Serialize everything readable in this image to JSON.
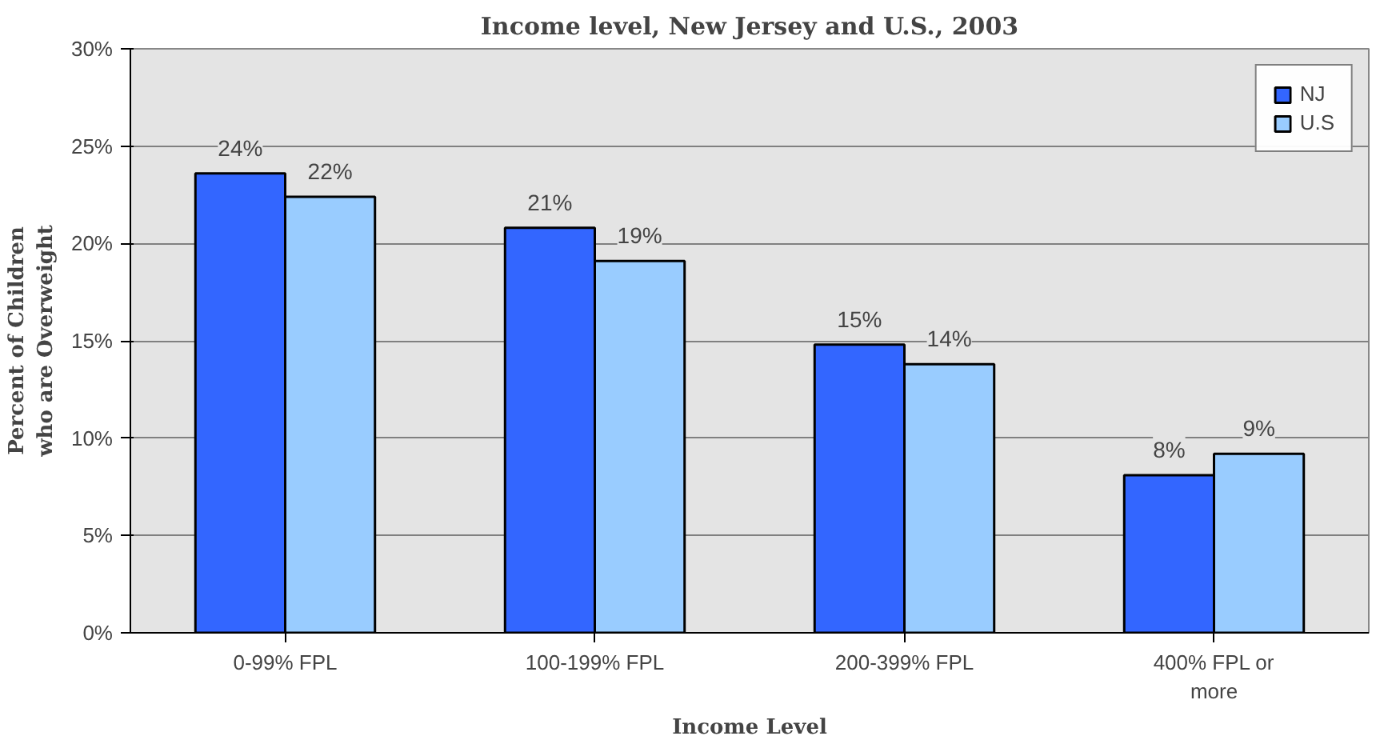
{
  "chart_data": {
    "type": "bar",
    "title": "Income level, New Jersey and U.S., 2003",
    "xlabel": "Income Level",
    "ylabel": "Percent of Children who are Overweight",
    "categories": [
      "0-99% FPL",
      "100-199% FPL",
      "200-399% FPL",
      "400% FPL or more"
    ],
    "series": [
      {
        "name": "NJ",
        "color": "#3366ff",
        "values": [
          23.6,
          20.8,
          14.8,
          8.1
        ],
        "value_labels": [
          "24%",
          "21%",
          "15%",
          "8%"
        ]
      },
      {
        "name": "U.S",
        "color": "#99ccff",
        "values": [
          22.4,
          19.1,
          13.8,
          9.2
        ],
        "value_labels": [
          "22%",
          "19%",
          "14%",
          "9%"
        ]
      }
    ],
    "ylim": [
      0,
      30
    ],
    "yticks": [
      {
        "value": 0,
        "label": "0%"
      },
      {
        "value": 5,
        "label": "5%"
      },
      {
        "value": 10,
        "label": "10%"
      },
      {
        "value": 15,
        "label": "15%"
      },
      {
        "value": 20,
        "label": "20%"
      },
      {
        "value": 25,
        "label": "25%"
      },
      {
        "value": 30,
        "label": "30%"
      }
    ],
    "grid": "y",
    "legend": "top right"
  }
}
